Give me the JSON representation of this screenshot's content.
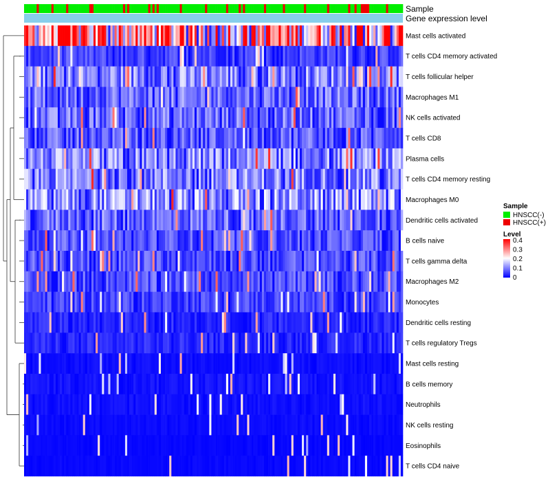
{
  "chart_data": {
    "type": "heatmap",
    "title": "",
    "annotation_tracks": [
      "Sample",
      "Gene expression level"
    ],
    "sample_groups": [
      "HNSCC(-)",
      "HNSCC(+)"
    ],
    "rows": [
      {
        "label": "Mast cells activated",
        "mean": 0.26
      },
      {
        "label": "T cells CD4 memory activated",
        "mean": 0.05
      },
      {
        "label": "T cells follicular helper",
        "mean": 0.1
      },
      {
        "label": "Macrophages M1",
        "mean": 0.08
      },
      {
        "label": "NK cells activated",
        "mean": 0.08
      },
      {
        "label": "T cells CD8",
        "mean": 0.07
      },
      {
        "label": "Plasma cells",
        "mean": 0.1
      },
      {
        "label": "T cells CD4 memory resting",
        "mean": 0.1
      },
      {
        "label": "Macrophages M0",
        "mean": 0.11
      },
      {
        "label": "Dendritic cells activated",
        "mean": 0.08
      },
      {
        "label": "B cells naive",
        "mean": 0.06
      },
      {
        "label": "T cells gamma delta",
        "mean": 0.06
      },
      {
        "label": "Macrophages M2",
        "mean": 0.06
      },
      {
        "label": "Monocytes",
        "mean": 0.05
      },
      {
        "label": "Dendritic cells resting",
        "mean": 0.03
      },
      {
        "label": "T cells regulatory  Tregs",
        "mean": 0.03
      },
      {
        "label": "Mast cells resting",
        "mean": 0.01
      },
      {
        "label": "B cells memory",
        "mean": 0.015
      },
      {
        "label": "Neutrophils",
        "mean": 0.012
      },
      {
        "label": "NK cells resting",
        "mean": 0.008
      },
      {
        "label": "Eosinophils",
        "mean": 0.005
      },
      {
        "label": "T cells CD4 naive",
        "mean": 0.006
      }
    ],
    "n_samples": 180,
    "legend": {
      "sample_title": "Sample",
      "sample_entries": [
        {
          "label": "HNSCC(-)",
          "color": "#00ee00"
        },
        {
          "label": "HNSCC(+)",
          "color": "#ee0000"
        }
      ],
      "level_title": "Level",
      "level_ticks": [
        "0.4",
        "0.3",
        "0.2",
        "0.1",
        "0"
      ],
      "level_range": [
        0,
        0.4
      ]
    },
    "colors": {
      "low": "#0000ff",
      "mid": "#ffffff",
      "high": "#ff0000",
      "expression_track": "#87ceeb"
    }
  }
}
